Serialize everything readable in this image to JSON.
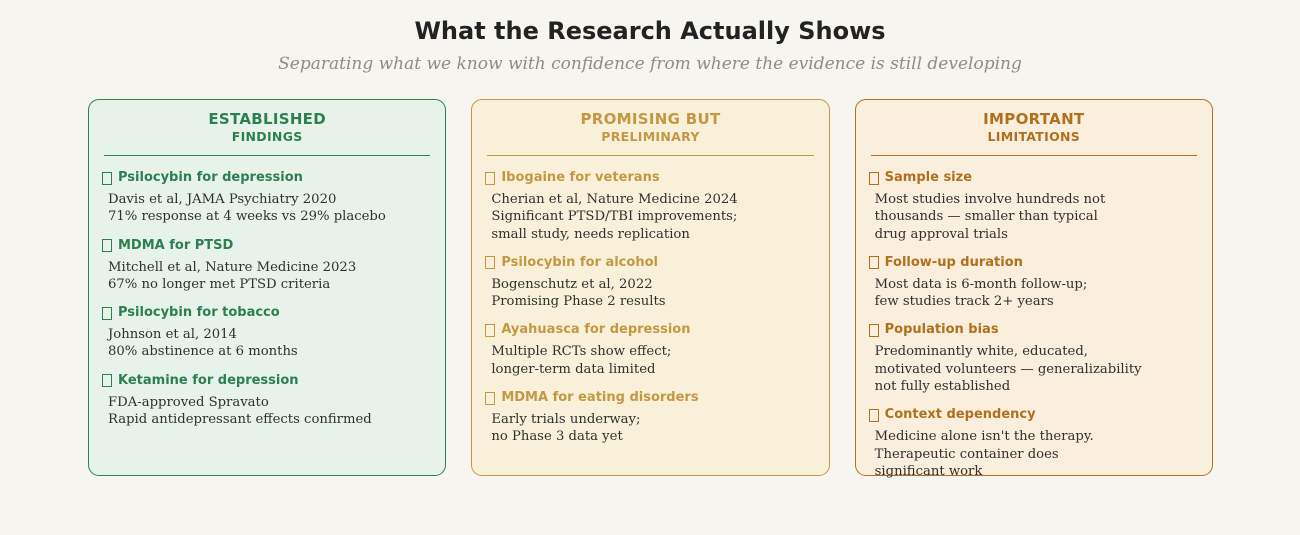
{
  "page": {
    "title": "What the Research Actually Shows",
    "subtitle": "Separating what we know with confidence from where the evidence is still developing",
    "background": "#f7f5f0"
  },
  "bullet_glyph": "missing-glyph-square",
  "cards": [
    {
      "id": "established-findings",
      "header_line1": "ESTABLISHED",
      "header_line2": "FINDINGS",
      "accent": "#2d7f4f",
      "background": "#e6f2ea",
      "items": [
        {
          "title": "Psilocybin for depression",
          "lines": [
            "Davis et al, JAMA Psychiatry 2020",
            "71% response at 4 weeks vs 29% placebo"
          ]
        },
        {
          "title": "MDMA for PTSD",
          "lines": [
            "Mitchell et al, Nature Medicine 2023",
            "67% no longer met PTSD criteria"
          ]
        },
        {
          "title": "Psilocybin for tobacco",
          "lines": [
            "Johnson et al, 2014",
            "80% abstinence at 6 months"
          ]
        },
        {
          "title": "Ketamine for depression",
          "lines": [
            "FDA-approved Spravato",
            "Rapid antidepressant effects confirmed"
          ]
        }
      ]
    },
    {
      "id": "promising-but-preliminary",
      "header_line1": "PROMISING BUT",
      "header_line2": "PRELIMINARY",
      "accent": "#c49843",
      "background": "#f8f0d9",
      "items": [
        {
          "title": "Ibogaine for veterans",
          "lines": [
            "Cherian et al, Nature Medicine 2024",
            "Significant PTSD/TBI improvements;",
            "small study, needs replication"
          ]
        },
        {
          "title": "Psilocybin for alcohol",
          "lines": [
            "Bogenschutz et al, 2022",
            "Promising Phase 2 results"
          ]
        },
        {
          "title": "Ayahuasca for depression",
          "lines": [
            "Multiple RCTs show effect;",
            "longer-term data limited"
          ]
        },
        {
          "title": "MDMA for eating disorders",
          "lines": [
            "Early trials underway;",
            "no Phase 3 data yet"
          ]
        }
      ]
    },
    {
      "id": "important-limitations",
      "header_line1": "IMPORTANT",
      "header_line2": "LIMITATIONS",
      "accent": "#b0701e",
      "background": "#faeedc",
      "items": [
        {
          "title": "Sample size",
          "lines": [
            "Most studies involve hundreds not",
            "thousands — smaller than typical",
            "drug approval trials"
          ]
        },
        {
          "title": "Follow-up duration",
          "lines": [
            "Most data is 6-month follow-up;",
            "few studies track 2+ years"
          ]
        },
        {
          "title": "Population bias",
          "lines": [
            "Predominantly white, educated,",
            "motivated volunteers — generalizability",
            "not fully established"
          ]
        },
        {
          "title": "Context dependency",
          "lines": [
            "Medicine alone isn't the therapy.",
            "Therapeutic container does",
            "significant work"
          ]
        }
      ]
    }
  ]
}
